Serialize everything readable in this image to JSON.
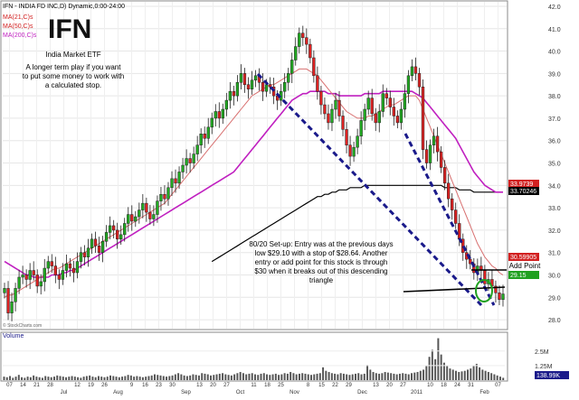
{
  "header": {
    "title_line": "IFN - INDIA FD INC,D) Dynamic,0:00-24:00",
    "ma_labels": [
      {
        "text": "MA(21,C)s",
        "color": "#d22020"
      },
      {
        "text": "MA(50,C)s",
        "color": "#d22020"
      },
      {
        "text": "MA(200,C)s",
        "color": "#c020c0"
      }
    ],
    "symbol": "IFN",
    "subtitle": "India Market ETF",
    "description": "A longer term play if you want to put some money to work with a calculated stop.",
    "copyright": "© StockCharts.com"
  },
  "annotations": {
    "setup_text": "80/20 Set-up: Entry was at the previous days low $29.10 with a stop of $28.64. Another entry or add point for this stock is through $30 when it breaks out of this descending triangle",
    "add_point_label": "Add Point"
  },
  "price_badges": [
    {
      "text": "33.9739",
      "value": 33.9739,
      "color": "#d22020"
    },
    {
      "text": "33.70246",
      "value": 33.70246,
      "color": "#000000"
    },
    {
      "text": "30.59905",
      "value": 30.59905,
      "color": "#d22020"
    },
    {
      "text": "29.15",
      "value": 29.15,
      "color": "#20a020"
    }
  ],
  "volume": {
    "label": "Volume",
    "axis_ticks": [
      "2.5M",
      "1.25M"
    ],
    "axis_values": [
      2.5,
      1.25
    ],
    "last_badge": "138.99K",
    "bars": [
      0.3,
      0.25,
      0.35,
      0.2,
      0.3,
      0.45,
      0.25,
      0.2,
      0.3,
      0.25,
      0.4,
      0.3,
      0.25,
      0.2,
      0.35,
      0.3,
      0.25,
      0.3,
      0.4,
      0.35,
      0.3,
      0.25,
      0.3,
      0.35,
      0.3,
      0.25,
      0.2,
      0.3,
      0.35,
      0.4,
      0.3,
      0.25,
      0.35,
      0.3,
      0.25,
      0.3,
      0.4,
      0.35,
      0.3,
      0.25,
      0.3,
      0.35,
      0.45,
      0.4,
      0.3,
      0.35,
      0.3,
      0.25,
      0.3,
      0.35,
      0.4,
      0.5,
      0.45,
      0.4,
      0.35,
      0.3,
      0.35,
      0.4,
      0.5,
      0.6,
      0.5,
      0.4,
      0.35,
      0.4,
      0.5,
      0.45,
      0.4,
      0.6,
      0.55,
      0.5,
      0.4,
      0.45,
      0.5,
      0.55,
      0.6,
      0.5,
      0.45,
      0.4,
      0.5,
      0.6,
      0.7,
      0.6,
      0.5,
      0.55,
      0.6,
      0.5,
      0.45,
      0.55,
      0.6,
      0.5,
      0.45,
      0.5,
      0.55,
      0.45,
      0.5,
      0.6,
      0.55,
      0.7,
      0.6,
      0.5,
      0.55,
      0.6,
      0.55,
      0.5,
      0.45,
      0.5,
      0.55,
      0.6,
      1.1,
      0.8,
      0.7,
      0.6,
      0.55,
      0.5,
      0.6,
      0.55,
      0.5,
      0.45,
      0.5,
      0.55,
      0.6,
      0.5,
      0.55,
      1.3,
      0.9,
      0.7,
      0.6,
      0.55,
      0.6,
      0.7,
      0.65,
      0.6,
      0.55,
      0.5,
      0.55,
      0.6,
      0.55,
      0.5,
      0.6,
      0.65,
      0.7,
      0.8,
      0.9,
      1.2,
      2.0,
      2.6,
      1.8,
      3.6,
      2.2,
      1.5,
      1.2,
      1.0,
      0.9,
      0.8,
      0.7,
      0.75,
      0.8,
      0.9,
      1.0,
      1.2,
      1.4,
      1.1,
      0.9,
      0.8,
      0.7,
      0.6,
      0.5,
      0.4,
      0.3,
      0.2
    ]
  },
  "chart_data": {
    "type": "candlestick",
    "y_ticks": [
      28,
      29,
      30,
      31,
      32,
      33,
      34,
      35,
      36,
      37,
      38,
      39,
      40,
      41,
      42
    ],
    "ylim": [
      27.6,
      42.2
    ],
    "x_tick_labels": [
      "07",
      "14",
      "21",
      "28",
      "Jul",
      "12",
      "19",
      "26",
      "Aug",
      "9",
      "16",
      "23",
      "30",
      "Sep",
      "13",
      "20",
      "27",
      "Oct",
      "11",
      "18",
      "25",
      "Nov",
      "8",
      "15",
      "22",
      "29",
      "Dec",
      "13",
      "20",
      "27",
      "2011",
      "10",
      "18",
      "24",
      "31",
      "Feb",
      "07"
    ],
    "month_labels": [
      "Jul",
      "Aug",
      "Sep",
      "Oct",
      "Nov",
      "Dec",
      "2011",
      "Feb"
    ],
    "close": [
      29.4,
      28.3,
      28.8,
      29.4,
      29.9,
      30.0,
      29.8,
      30.2,
      30.0,
      29.5,
      29.7,
      30.3,
      30.6,
      30.4,
      30.0,
      29.8,
      30.2,
      30.5,
      30.3,
      30.1,
      30.6,
      31.0,
      30.8,
      31.2,
      31.6,
      31.3,
      31.0,
      31.5,
      31.9,
      32.2,
      32.0,
      31.6,
      31.8,
      32.3,
      32.7,
      32.4,
      32.6,
      32.9,
      33.2,
      32.8,
      32.5,
      32.7,
      33.3,
      33.6,
      33.4,
      33.9,
      34.3,
      34.1,
      34.6,
      34.9,
      35.2,
      35.0,
      35.4,
      35.8,
      36.3,
      36.1,
      36.6,
      37.0,
      37.3,
      37.0,
      37.4,
      37.8,
      38.2,
      38.0,
      38.6,
      39.0,
      38.5,
      38.3,
      38.7,
      38.9,
      38.6,
      38.2,
      38.5,
      38.4,
      38.0,
      37.8,
      38.2,
      38.6,
      39.0,
      39.6,
      40.2,
      40.8,
      40.6,
      40.3,
      39.7,
      38.9,
      38.2,
      37.6,
      37.2,
      36.8,
      37.4,
      37.8,
      37.1,
      36.5,
      35.8,
      35.3,
      35.7,
      36.2,
      36.9,
      37.4,
      37.9,
      37.2,
      36.8,
      37.3,
      38.1,
      37.9,
      37.5,
      37.1,
      36.8,
      37.4,
      38.1,
      38.9,
      39.3,
      39.0,
      38.4,
      35.6,
      35.0,
      35.8,
      36.2,
      35.5,
      34.8,
      34.1,
      33.4,
      32.9,
      32.3,
      31.6,
      31.0,
      30.7,
      30.5,
      30.1,
      30.4,
      30.2,
      29.6,
      29.8,
      29.5,
      29.2,
      28.9,
      29.15
    ],
    "ma_21": [
      29.0,
      29.1,
      29.1,
      29.2,
      29.3,
      29.4,
      29.5,
      29.6,
      29.7,
      29.8,
      29.9,
      30.0,
      30.1,
      30.2,
      30.3,
      30.3,
      30.4,
      30.5,
      30.6,
      30.7,
      30.8,
      30.9,
      31.0,
      31.1,
      31.2,
      31.3,
      31.4,
      31.5,
      31.6,
      31.7,
      31.8,
      31.9,
      32.0,
      32.1,
      32.2,
      32.3,
      32.4,
      32.5,
      32.6,
      32.7,
      32.8,
      32.9,
      33.0,
      33.1,
      33.2,
      33.4,
      33.6,
      33.8,
      34.0,
      34.2,
      34.4,
      34.6,
      34.8,
      35.0,
      35.2,
      35.4,
      35.6,
      35.8,
      36.0,
      36.2,
      36.4,
      36.6,
      36.8,
      37.0,
      37.2,
      37.4,
      37.6,
      37.8,
      38.0,
      38.1,
      38.2,
      38.3,
      38.4,
      38.5,
      38.5,
      38.6,
      38.7,
      38.8,
      38.9,
      39.0,
      39.1,
      39.2,
      39.2,
      39.2,
      39.1,
      39.0,
      38.9,
      38.7,
      38.5,
      38.3,
      38.1,
      37.9,
      37.7,
      37.5,
      37.3,
      37.2,
      37.1,
      37.0,
      37.0,
      37.0,
      37.1,
      37.1,
      37.2,
      37.3,
      37.4,
      37.5,
      37.6,
      37.6,
      37.7,
      37.8,
      37.9,
      38.0,
      38.0,
      38.0,
      37.8,
      37.4,
      37.0,
      36.6,
      36.2,
      35.8,
      35.4,
      35.0,
      34.6,
      34.2,
      33.8,
      33.4,
      33.0,
      32.6,
      32.2,
      31.8,
      31.4,
      31.1,
      30.8,
      30.6,
      30.4,
      30.3,
      30.1,
      30.0
    ],
    "ma_50": [
      30.6,
      30.5,
      30.4,
      30.3,
      30.2,
      30.1,
      30.0,
      30.0,
      29.9,
      29.9,
      29.9,
      29.9,
      29.9,
      30.0,
      30.0,
      30.0,
      30.1,
      30.1,
      30.2,
      30.2,
      30.3,
      30.4,
      30.5,
      30.6,
      30.7,
      30.8,
      30.9,
      31.0,
      31.1,
      31.2,
      31.3,
      31.4,
      31.5,
      31.6,
      31.7,
      31.8,
      31.9,
      32.0,
      32.1,
      32.2,
      32.3,
      32.4,
      32.5,
      32.6,
      32.7,
      32.8,
      32.9,
      33.0,
      33.1,
      33.2,
      33.3,
      33.4,
      33.5,
      33.6,
      33.7,
      33.8,
      33.9,
      34.0,
      34.1,
      34.2,
      34.3,
      34.4,
      34.5,
      34.6,
      34.8,
      35.0,
      35.2,
      35.4,
      35.6,
      35.8,
      36.0,
      36.2,
      36.4,
      36.6,
      36.8,
      37.0,
      37.2,
      37.4,
      37.6,
      37.8,
      37.9,
      38.0,
      38.1,
      38.1,
      38.2,
      38.2,
      38.2,
      38.2,
      38.2,
      38.1,
      38.1,
      38.1,
      38.0,
      38.0,
      38.0,
      38.0,
      38.0,
      38.0,
      38.0,
      38.1,
      38.1,
      38.1,
      38.1,
      38.1,
      38.2,
      38.2,
      38.2,
      38.2,
      38.2,
      38.2,
      38.2,
      38.2,
      38.2,
      38.1,
      38.0,
      37.9,
      37.7,
      37.5,
      37.3,
      37.1,
      36.9,
      36.7,
      36.5,
      36.3,
      36.1,
      35.8,
      35.5,
      35.2,
      34.9,
      34.6,
      34.4,
      34.2,
      34.0,
      33.9,
      33.8,
      33.7,
      33.7,
      33.7
    ],
    "ma_200_start_index": 57,
    "ma_200": [
      30.6,
      30.7,
      30.8,
      30.9,
      31.0,
      31.1,
      31.2,
      31.3,
      31.4,
      31.5,
      31.6,
      31.7,
      31.8,
      31.9,
      32.0,
      32.1,
      32.2,
      32.3,
      32.4,
      32.5,
      32.6,
      32.7,
      32.8,
      32.9,
      33.0,
      33.1,
      33.2,
      33.3,
      33.4,
      33.5,
      33.5,
      33.6,
      33.6,
      33.7,
      33.7,
      33.8,
      33.8,
      33.8,
      33.9,
      33.9,
      33.9,
      33.9,
      34.0,
      34.0,
      34.0,
      34.0,
      34.0,
      34.0,
      34.0,
      34.0,
      34.0,
      34.0,
      34.0,
      34.0,
      34.0,
      34.0,
      34.0,
      34.0,
      34.0,
      34.0,
      34.0,
      34.0,
      34.0,
      34.0,
      33.9,
      33.9,
      33.9,
      33.9,
      33.8,
      33.8,
      33.8,
      33.8,
      33.7,
      33.7,
      33.7,
      33.7,
      33.7,
      33.7,
      33.7,
      33.7
    ]
  }
}
